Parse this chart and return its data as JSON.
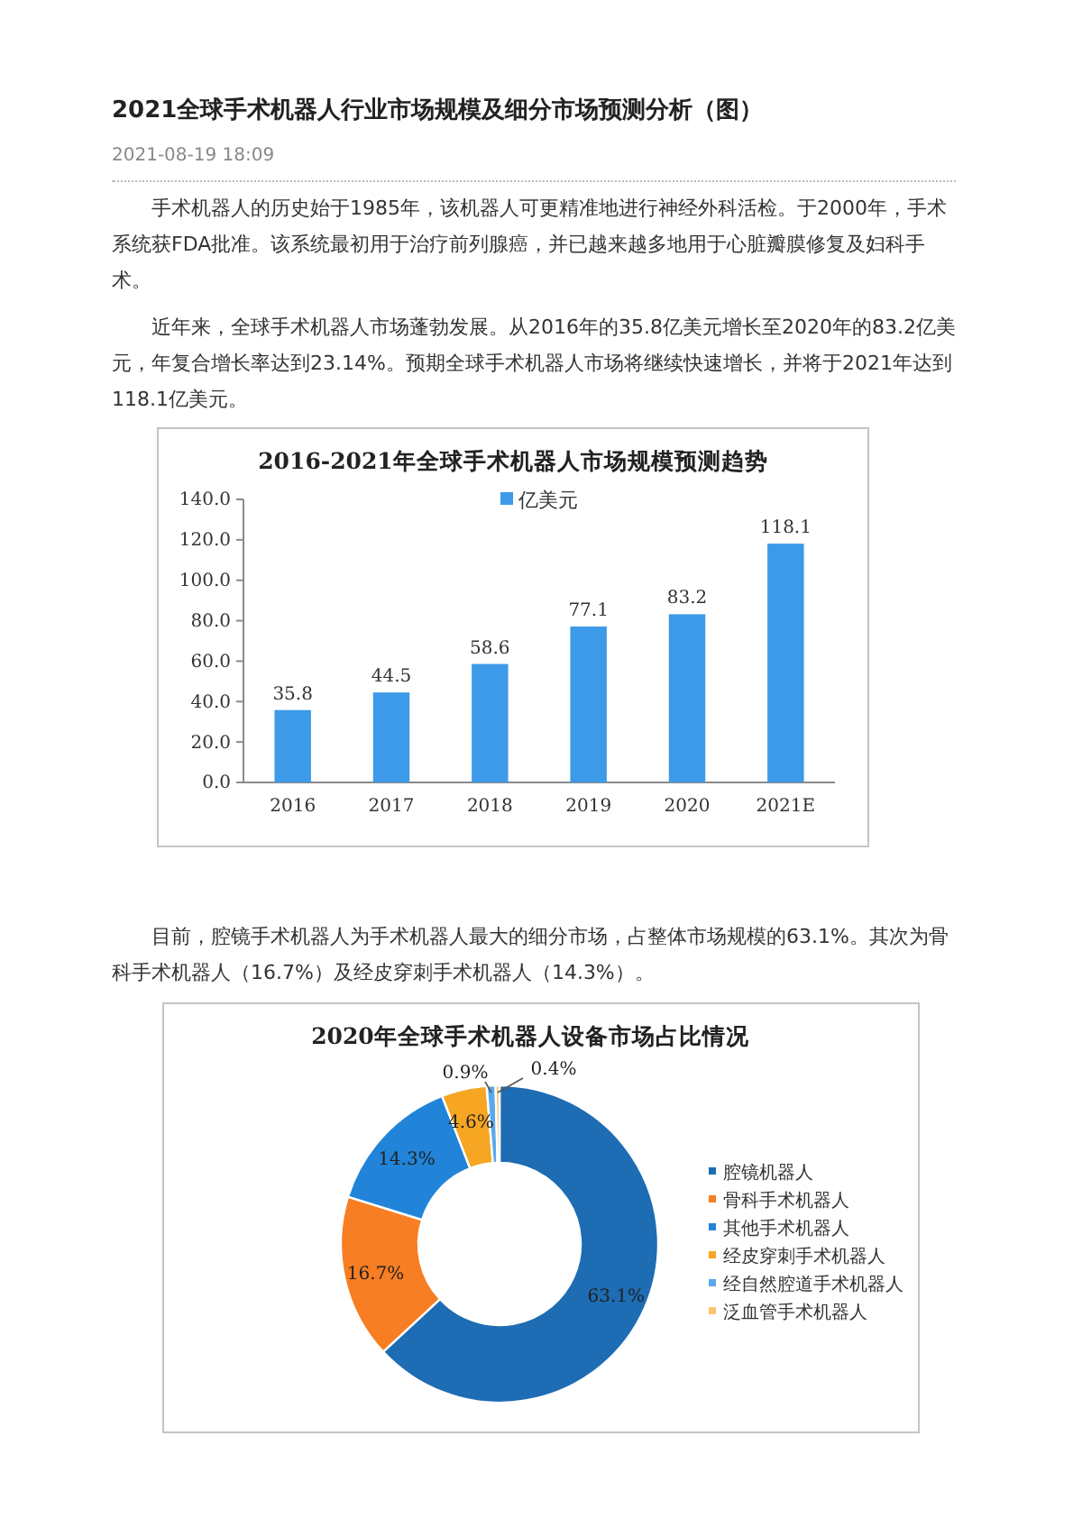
{
  "chart_data": [
    {
      "type": "other",
      "title": "2021全球手术机器人行业市场规模及细分市场预测分析（图）",
      "subtitle": "2021-08-19 18:09",
      "annotations": [
        "手术机器人的历史始于1985年，该机器人可更精准地进行神经外科活检。于2000年，手术系统获FDA批准。该系统最初用于治疗前列腺癌，并已越来越多地用于心脏瓣膜修复及妇科手术。",
        "近年来，全球手术机器人市场蓬勃发展。从2016年的35.8亿美元增长至2020年的83.2亿美元，年复合增长率达到23.14%。预期全球手术机器人市场将继续快速增长，并将于2021年达到118.1亿美元。"
      ]
    },
    {
      "type": "bar",
      "title": "2016-2021年全球手术机器人市场规模预测趋势",
      "categories": [
        "2016",
        "2017",
        "2018",
        "2019",
        "2020",
        "2021E"
      ],
      "series": [
        {
          "name": "亿美元",
          "color": "#3d9ae8",
          "values": [
            35.8,
            44.5,
            58.6,
            77.1,
            83.2,
            118.1
          ]
        }
      ],
      "ylim": [
        0,
        140
      ],
      "yticks": [
        {
          "value": 0,
          "label": "0.0"
        },
        {
          "value": 20,
          "label": "20.0"
        },
        {
          "value": 40,
          "label": "40.0"
        },
        {
          "value": 60,
          "label": "60.0"
        },
        {
          "value": 80,
          "label": "80.0"
        },
        {
          "value": 100,
          "label": "100.0"
        },
        {
          "value": 120,
          "label": "120.0"
        },
        {
          "value": 140,
          "label": "140.0"
        }
      ],
      "data_labels": true,
      "legend": "top"
    },
    {
      "type": "other",
      "annotations": [
        "目前，腔镜手术机器人为手术机器人最大的细分市场，占整体市场规模的63.1%。其次为骨科手术机器人（16.7%）及经皮穿刺手术机器人（14.3%）。"
      ]
    },
    {
      "type": "donut",
      "title": "2020年全球手术机器人设备市场占比情况",
      "categories": [
        "腔镜机器人",
        "骨科手术机器人",
        "其他手术机器人",
        "经皮穿刺手术机器人",
        "经自然腔道手术机器人",
        "泛血管手术机器人"
      ],
      "values": [
        63.1,
        16.7,
        14.3,
        4.6,
        0.9,
        0.4
      ],
      "colors": [
        "#1d6cb4",
        "#f77e22",
        "#2184d8",
        "#f6a622",
        "#5aa9ec",
        "#fcc46c"
      ],
      "value_labels": [
        "63.1%",
        "16.7%",
        "14.3%",
        "4.6%",
        "0.9%",
        "0.4%"
      ],
      "legend": "right"
    }
  ]
}
